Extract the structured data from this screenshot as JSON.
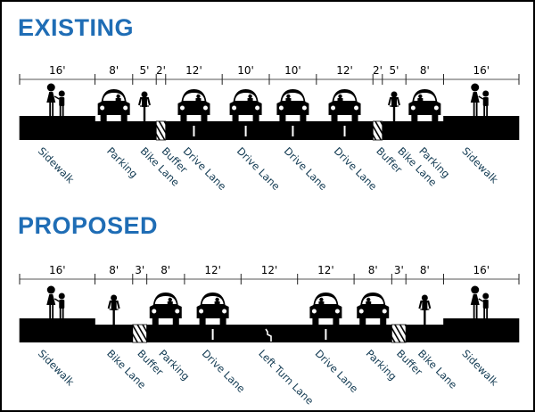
{
  "colors": {
    "title": "#1f6db5",
    "label": "#123a52",
    "road": "#000000"
  },
  "sections": [
    {
      "title": "EXISTING",
      "segments": [
        {
          "dim": "16'",
          "feet": 16,
          "label": "Sidewalk",
          "icon": "pedestrians",
          "surface": "sidewalk"
        },
        {
          "dim": "8'",
          "feet": 8,
          "label": "Parking",
          "icon": "car",
          "surface": "road"
        },
        {
          "dim": "5'",
          "feet": 5,
          "label": "Bike Lane",
          "icon": "bicycle",
          "surface": "road"
        },
        {
          "dim": "2'",
          "feet": 2,
          "label": "Buffer",
          "icon": "none",
          "surface": "hatch"
        },
        {
          "dim": "12'",
          "feet": 12,
          "label": "Drive Lane",
          "icon": "car",
          "surface": "road",
          "marking": "arrow-down"
        },
        {
          "dim": "10'",
          "feet": 10,
          "label": "Drive Lane",
          "icon": "car",
          "surface": "road",
          "marking": "arrow-down"
        },
        {
          "dim": "10'",
          "feet": 10,
          "label": "Drive Lane",
          "icon": "car",
          "surface": "road",
          "marking": "arrow-up"
        },
        {
          "dim": "12'",
          "feet": 12,
          "label": "Drive Lane",
          "icon": "car",
          "surface": "road",
          "marking": "arrow-up"
        },
        {
          "dim": "2'",
          "feet": 2,
          "label": "Buffer",
          "icon": "none",
          "surface": "hatch"
        },
        {
          "dim": "5'",
          "feet": 5,
          "label": "Bike Lane",
          "icon": "bicycle",
          "surface": "road"
        },
        {
          "dim": "8'",
          "feet": 8,
          "label": "Parking",
          "icon": "car",
          "surface": "road"
        },
        {
          "dim": "16'",
          "feet": 16,
          "label": "Sidewalk",
          "icon": "pedestrians",
          "surface": "sidewalk"
        }
      ]
    },
    {
      "title": "PROPOSED",
      "segments": [
        {
          "dim": "16'",
          "feet": 16,
          "label": "Sidewalk",
          "icon": "pedestrians",
          "surface": "sidewalk"
        },
        {
          "dim": "8'",
          "feet": 8,
          "label": "Bike Lane",
          "icon": "bicycle",
          "surface": "road"
        },
        {
          "dim": "3'",
          "feet": 3,
          "label": "Buffer",
          "icon": "none",
          "surface": "hatch"
        },
        {
          "dim": "8'",
          "feet": 8,
          "label": "Parking",
          "icon": "car",
          "surface": "road"
        },
        {
          "dim": "12'",
          "feet": 12,
          "label": "Drive Lane",
          "icon": "car",
          "surface": "road",
          "marking": "arrow-down"
        },
        {
          "dim": "12'",
          "feet": 12,
          "label": "Left Turn Lane",
          "icon": "none",
          "surface": "road",
          "marking": "turn"
        },
        {
          "dim": "12'",
          "feet": 12,
          "label": "Drive Lane",
          "icon": "car",
          "surface": "road",
          "marking": "arrow-up"
        },
        {
          "dim": "8'",
          "feet": 8,
          "label": "Parking",
          "icon": "car",
          "surface": "road"
        },
        {
          "dim": "3'",
          "feet": 3,
          "label": "Buffer",
          "icon": "none",
          "surface": "hatch"
        },
        {
          "dim": "8'",
          "feet": 8,
          "label": "Bike Lane",
          "icon": "bicycle",
          "surface": "road"
        },
        {
          "dim": "16'",
          "feet": 16,
          "label": "Sidewalk",
          "icon": "pedestrians",
          "surface": "sidewalk"
        }
      ]
    }
  ]
}
